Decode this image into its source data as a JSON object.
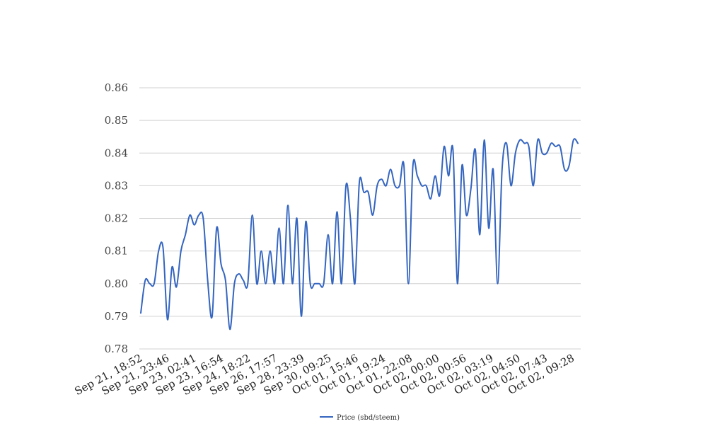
{
  "chart_data": {
    "type": "line",
    "title": "",
    "xlabel": "",
    "ylabel": "",
    "ylim": [
      0.78,
      0.86
    ],
    "yticks": [
      "0.78",
      "0.79",
      "0.80",
      "0.81",
      "0.82",
      "0.83",
      "0.84",
      "0.85",
      "0.86"
    ],
    "grid": "horizontal",
    "legend_position": "bottom-center",
    "colors": {
      "line": "#3465c0",
      "grid": "#d0d0d0",
      "axis_text": "#444444"
    },
    "xtick_labels": [
      "Sep 21, 18:52",
      "Sep 21, 23:46",
      "Sep 23, 02:41",
      "Sep 23, 16:54",
      "Sep 24, 18:22",
      "Sep 26, 17:57",
      "Sep 28, 23:39",
      "Sep 30, 09:25",
      "Oct 01, 15:46",
      "Oct 01, 19:24",
      "Oct 01, 22:08",
      "Oct 02, 00:00",
      "Oct 02, 00:56",
      "Oct 02, 03:19",
      "Oct 02, 04:50",
      "Oct 02, 07:43",
      "Oct 02, 09:28"
    ],
    "series": [
      {
        "name": "Price (sbd/steem)",
        "values": [
          0.791,
          0.801,
          0.8,
          0.8,
          0.81,
          0.811,
          0.789,
          0.805,
          0.799,
          0.81,
          0.815,
          0.821,
          0.818,
          0.821,
          0.82,
          0.801,
          0.79,
          0.817,
          0.806,
          0.801,
          0.786,
          0.8,
          0.803,
          0.801,
          0.8,
          0.821,
          0.8,
          0.81,
          0.8,
          0.81,
          0.8,
          0.817,
          0.8,
          0.824,
          0.8,
          0.82,
          0.79,
          0.819,
          0.8,
          0.8,
          0.8,
          0.8,
          0.815,
          0.8,
          0.822,
          0.8,
          0.83,
          0.82,
          0.8,
          0.831,
          0.828,
          0.828,
          0.821,
          0.83,
          0.832,
          0.83,
          0.835,
          0.83,
          0.83,
          0.836,
          0.8,
          0.836,
          0.833,
          0.83,
          0.83,
          0.826,
          0.833,
          0.827,
          0.842,
          0.833,
          0.841,
          0.8,
          0.836,
          0.821,
          0.829,
          0.841,
          0.815,
          0.844,
          0.817,
          0.835,
          0.8,
          0.835,
          0.843,
          0.83,
          0.84,
          0.844,
          0.843,
          0.842,
          0.83,
          0.844,
          0.84,
          0.84,
          0.843,
          0.842,
          0.842,
          0.835,
          0.836,
          0.844,
          0.843
        ]
      }
    ]
  }
}
